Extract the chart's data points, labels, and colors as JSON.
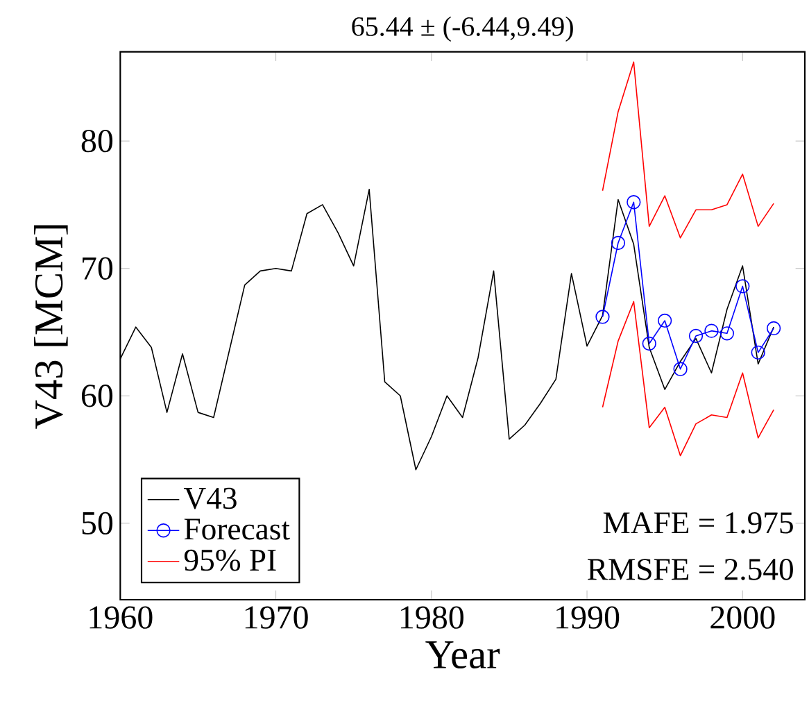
{
  "chart_data": {
    "type": "line",
    "title": "65.44 ± (-6.44,9.49)",
    "xlabel": "Year",
    "ylabel": "V43 [MCM]",
    "xlim": [
      1960,
      2004
    ],
    "ylim": [
      44,
      87
    ],
    "xticks": [
      1960,
      1970,
      1980,
      1990,
      2000
    ],
    "yticks": [
      50,
      60,
      70,
      80
    ],
    "grid": false,
    "legend": "bottom left",
    "annotations": [
      "MAFE = 1.975",
      "RMSFE = 2.540"
    ],
    "series": [
      {
        "name": "V43",
        "color": "#000000",
        "marker": "none",
        "x": [
          1960,
          1961,
          1962,
          1963,
          1964,
          1965,
          1966,
          1967,
          1968,
          1969,
          1970,
          1971,
          1972,
          1973,
          1974,
          1975,
          1976,
          1977,
          1978,
          1979,
          1980,
          1981,
          1982,
          1983,
          1984,
          1985,
          1986,
          1987,
          1988,
          1989,
          1990,
          1991,
          1992,
          1993,
          1994,
          1995,
          1996,
          1997,
          1998,
          1999,
          2000,
          2001,
          2002
        ],
        "values": [
          62.9,
          65.4,
          63.8,
          58.7,
          63.3,
          58.7,
          58.3,
          63.5,
          68.7,
          69.8,
          70.0,
          69.8,
          74.3,
          75.0,
          72.8,
          70.2,
          76.2,
          61.1,
          60.0,
          54.2,
          56.8,
          60.0,
          58.3,
          63.0,
          69.8,
          56.6,
          57.7,
          59.4,
          61.3,
          69.6,
          63.9,
          66.3,
          75.4,
          71.9,
          63.8,
          60.5,
          62.7,
          64.5,
          61.8,
          66.8,
          70.2,
          62.5,
          65.4
        ]
      },
      {
        "name": "Forecast",
        "color": "#0000ff",
        "marker": "circle",
        "x": [
          1991,
          1992,
          1993,
          1994,
          1995,
          1996,
          1997,
          1998,
          1999,
          2000,
          2001,
          2002
        ],
        "values": [
          66.2,
          72.0,
          75.2,
          64.1,
          65.9,
          62.1,
          64.7,
          65.1,
          64.9,
          68.6,
          63.4,
          65.3
        ]
      },
      {
        "name": "95% PI",
        "color": "#ff0000",
        "marker": "none",
        "x": [
          1991,
          1992,
          1993,
          1994,
          1995,
          1996,
          1997,
          1998,
          1999,
          2000,
          2001,
          2002
        ],
        "values": [
          76.1,
          82.3,
          86.2,
          73.3,
          75.7,
          72.4,
          74.6,
          74.6,
          75.0,
          77.4,
          73.3,
          75.1
        ]
      },
      {
        "color": "#ff0000",
        "marker": "none",
        "x": [
          1991,
          1992,
          1993,
          1994,
          1995,
          1996,
          1997,
          1998,
          1999,
          2000,
          2001,
          2002
        ],
        "values": [
          59.1,
          64.3,
          67.4,
          57.5,
          59.1,
          55.3,
          57.8,
          58.5,
          58.3,
          61.8,
          56.7,
          58.9
        ]
      }
    ]
  }
}
